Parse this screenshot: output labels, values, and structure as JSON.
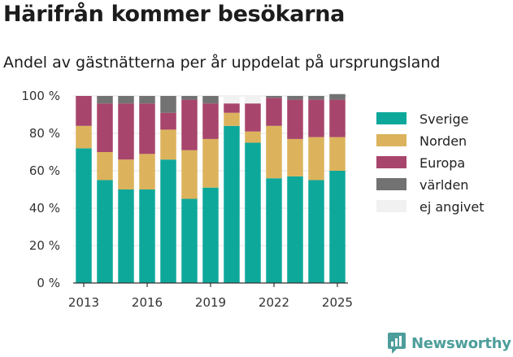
{
  "title": "Härifrån kommer besökarna",
  "subtitle": "Andel av gästnätterna per år uppdelat på ursprungsland",
  "brand": "Newsworthy",
  "chart_data": {
    "type": "bar",
    "stacked": true,
    "categories": [
      2013,
      2014,
      2015,
      2016,
      2017,
      2018,
      2019,
      2020,
      2021,
      2022,
      2023,
      2024,
      2025
    ],
    "x_tick_labels": [
      "2013",
      "2016",
      "2019",
      "2022",
      "2025"
    ],
    "y_tick_labels": [
      "0 %",
      "20 %",
      "40 %",
      "60 %",
      "80 %",
      "100 %"
    ],
    "ylim": [
      0,
      100
    ],
    "series": [
      {
        "name": "Sverige",
        "color": "#0ea89b",
        "values": [
          72,
          55,
          50,
          50,
          66,
          45,
          51,
          84,
          75,
          56,
          57,
          55,
          60
        ]
      },
      {
        "name": "Norden",
        "color": "#dcb35c",
        "values": [
          12,
          15,
          16,
          19,
          16,
          26,
          26,
          7,
          6,
          28,
          20,
          23,
          18
        ]
      },
      {
        "name": "Europa",
        "color": "#a8456c",
        "values": [
          16,
          26,
          30,
          27,
          9,
          27,
          19,
          5,
          15,
          15,
          21,
          20,
          20
        ]
      },
      {
        "name": "världen",
        "color": "#727272",
        "values": [
          0,
          4,
          4,
          4,
          9,
          2,
          4,
          0,
          0,
          1,
          2,
          2,
          3
        ]
      },
      {
        "name": "ej angivet",
        "color": "#f1f1f1",
        "values": [
          0,
          0,
          0,
          0,
          0,
          0,
          0,
          4,
          4,
          0,
          0,
          0,
          0
        ]
      }
    ],
    "grid": true,
    "legend_position": "right"
  }
}
